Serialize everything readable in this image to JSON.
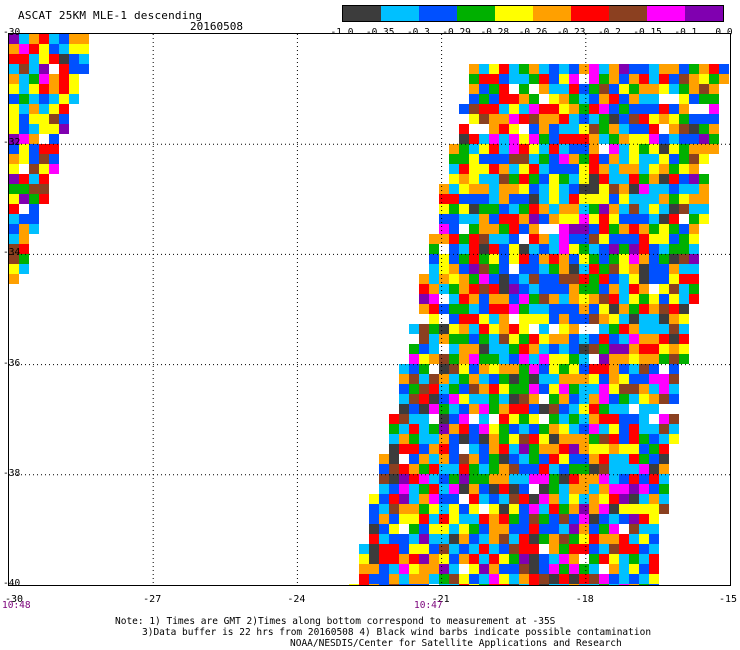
{
  "header": {
    "title": "ASCAT 25KM MLE-1 descending",
    "date": "20160508"
  },
  "colorbar": {
    "colors": [
      "#3c3c3c",
      "#00c0ff",
      "#0050ff",
      "#00b000",
      "#ffff00",
      "#ffa000",
      "#ff0000",
      "#8b4020",
      "#ff00ff",
      "#8000b0"
    ],
    "labels": [
      "-1.0",
      "-0.35",
      "-0.3",
      "-0.29",
      "-0.28",
      "-0.26",
      "-0.23",
      "-0.2",
      "-0.15",
      "-0.1",
      "0.0"
    ]
  },
  "map": {
    "lat_labels": [
      "-30",
      "-32",
      "-34",
      "-36",
      "-38",
      "-40"
    ],
    "lon_labels": [
      "-30",
      "-27",
      "-24",
      "-21",
      "-18",
      "-15"
    ],
    "lat_range": [
      -40,
      -30
    ],
    "lon_range": [
      -30,
      -15
    ],
    "grid": "dotted",
    "swath_coverage": [
      {
        "name": "west swath (partial)",
        "lon_min": -30,
        "lon_max": -28.4,
        "lat_min": -34.7,
        "lat_max": -30
      },
      {
        "name": "main swath",
        "lon_min": -23.3,
        "lon_max": -15.8,
        "lat_min": -40,
        "lat_max": -30.5
      }
    ]
  },
  "times": {
    "left": "10:48",
    "middle": "10:47"
  },
  "notes": {
    "line1": "Note: 1) Times are GMT 2)Times along bottom correspond to measurement at -35S",
    "line2": "3)Data buffer is 22 hrs from 20160508 4) Black wind barbs indicate possible contamination",
    "line3": "NOAA/NESDIS/Center for Satellite Applications and Research"
  }
}
